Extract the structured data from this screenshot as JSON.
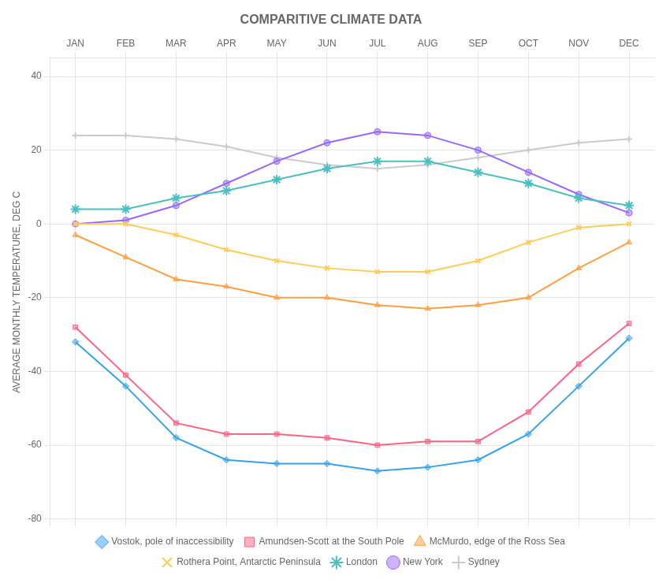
{
  "chart_data": {
    "type": "line",
    "title": "COMPARITIVE CLIMATE DATA",
    "ylabel": "AVERAGE MONTHLY TEMPERATURE, DEG C",
    "categories": [
      "JAN",
      "FEB",
      "MAR",
      "APR",
      "MAY",
      "JUN",
      "JUL",
      "AUG",
      "SEP",
      "OCT",
      "NOV",
      "DEC"
    ],
    "series": [
      {
        "name": "Vostok, pole of inaccessibility",
        "marker": "diamond",
        "values": [
          -32,
          -44,
          -58,
          -64,
          -65,
          -65,
          -67,
          -66,
          -64,
          -57,
          -44,
          -31
        ]
      },
      {
        "name": "Amundsen-Scott at the South Pole",
        "marker": "square",
        "values": [
          -28,
          -41,
          -54,
          -57,
          -57,
          -58,
          -60,
          -59,
          -59,
          -51,
          -38,
          -27
        ]
      },
      {
        "name": "McMurdo, edge of the Ross Sea",
        "marker": "triangle",
        "values": [
          -3,
          -9,
          -15,
          -17,
          -20,
          -20,
          -22,
          -23,
          -22,
          -20,
          -12,
          -5
        ]
      },
      {
        "name": "Rothera Point, Antarctic Peninsula",
        "marker": "x",
        "values": [
          0,
          0,
          -3,
          -7,
          -10,
          -12,
          -13,
          -13,
          -10,
          -5,
          -1,
          0
        ]
      },
      {
        "name": "London",
        "marker": "star",
        "values": [
          4,
          4,
          7,
          9,
          12,
          15,
          17,
          17,
          14,
          11,
          7,
          5
        ]
      },
      {
        "name": "New York",
        "marker": "circle",
        "values": [
          0,
          1,
          5,
          11,
          17,
          22,
          25,
          24,
          20,
          14,
          8,
          3
        ]
      },
      {
        "name": "Sydney",
        "marker": "plus",
        "values": [
          24,
          24,
          23,
          21,
          18,
          16,
          15,
          16,
          18,
          20,
          22,
          23
        ]
      }
    ],
    "ylim": [
      -82,
      45
    ],
    "yticks": [
      -80,
      -60,
      -40,
      -20,
      0,
      20,
      40
    ],
    "grid": true,
    "legend": "bottom"
  }
}
